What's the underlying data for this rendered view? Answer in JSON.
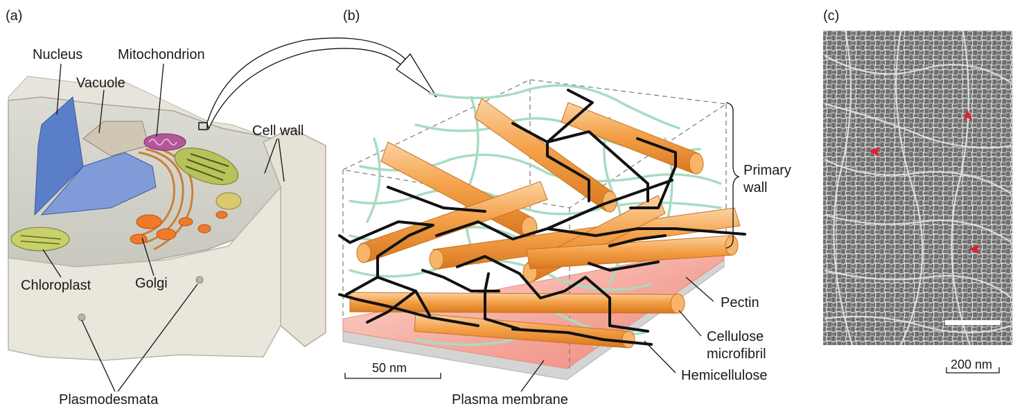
{
  "panels": {
    "a": "(a)",
    "b": "(b)",
    "c": "(c)"
  },
  "panel_a_labels": {
    "nucleus": "Nucleus",
    "vacuole": "Vacuole",
    "mitochondrion": "Mitochondrion",
    "cell_wall": "Cell wall",
    "chloroplast": "Chloroplast",
    "golgi": "Golgi",
    "plasmodesmata": "Plasmodesmata"
  },
  "panel_b_labels": {
    "primary_wall_line1": "Primary",
    "primary_wall_line2": "wall",
    "pectin": "Pectin",
    "cellulose_line1": "Cellulose",
    "cellulose_line2": "microfibril",
    "hemicellulose": "Hemicellulose",
    "plasma_membrane": "Plasma membrane",
    "scale_bar": "50 nm"
  },
  "panel_c_labels": {
    "scale_bar": "200 nm"
  },
  "colors": {
    "cellulose": "#f4a24a",
    "hemicellulose": "#111111",
    "pectin": "#a8dcc0",
    "membrane_pink": "#f4a59a",
    "membrane_gray": "#d4d4d4",
    "nucleus": "#5b7ec9",
    "arrowhead": "#e0202a"
  }
}
